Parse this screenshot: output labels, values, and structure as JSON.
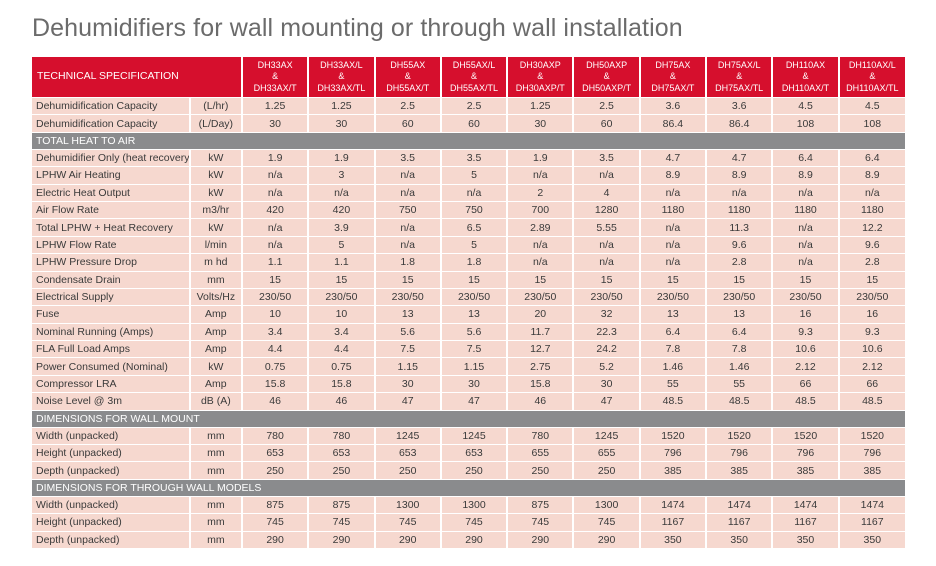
{
  "title": "Dehumidifiers for wall mounting or through wall installation",
  "header": {
    "spec_label": "TECHNICAL SPECIFICATION",
    "models": [
      [
        "DH33AX",
        "&",
        "DH33AX/T"
      ],
      [
        "DH33AX/L",
        "&",
        "DH33AX/TL"
      ],
      [
        "DH55AX",
        "&",
        "DH55AX/T"
      ],
      [
        "DH55AX/L",
        "&",
        "DH55AX/TL"
      ],
      [
        "DH30AXP",
        "&",
        "DH30AXP/T"
      ],
      [
        "DH50AXP",
        "&",
        "DH50AXP/T"
      ],
      [
        "DH75AX",
        "&",
        "DH75AX/T"
      ],
      [
        "DH75AX/L",
        "&",
        "DH75AX/TL"
      ],
      [
        "DH110AX",
        "&",
        "DH110AX/T"
      ],
      [
        "DH110AX/L",
        "&",
        "DH110AX/TL"
      ]
    ]
  },
  "sections": [
    {
      "title": null,
      "rows": [
        {
          "label": "Dehumidification Capacity",
          "unit": "(L/hr)",
          "values": [
            "1.25",
            "1.25",
            "2.5",
            "2.5",
            "1.25",
            "2.5",
            "3.6",
            "3.6",
            "4.5",
            "4.5"
          ]
        },
        {
          "label": "Dehumidification Capacity",
          "unit": "(L/Day)",
          "values": [
            "30",
            "30",
            "60",
            "60",
            "30",
            "60",
            "86.4",
            "86.4",
            "108",
            "108"
          ]
        }
      ]
    },
    {
      "title": "TOTAL HEAT TO AIR",
      "rows": [
        {
          "label": "Dehumidifier Only (heat recovery)",
          "unit": "kW",
          "values": [
            "1.9",
            "1.9",
            "3.5",
            "3.5",
            "1.9",
            "3.5",
            "4.7",
            "4.7",
            "6.4",
            "6.4"
          ]
        },
        {
          "label": "LPHW Air Heating",
          "unit": "kW",
          "values": [
            "n/a",
            "3",
            "n/a",
            "5",
            "n/a",
            "n/a",
            "8.9",
            "8.9",
            "8.9",
            "8.9"
          ]
        },
        {
          "label": "Electric Heat Output",
          "unit": "kW",
          "values": [
            "n/a",
            "n/a",
            "n/a",
            "n/a",
            "2",
            "4",
            "n/a",
            "n/a",
            "n/a",
            "n/a"
          ]
        },
        {
          "label": "Air Flow Rate",
          "unit": "m3/hr",
          "values": [
            "420",
            "420",
            "750",
            "750",
            "700",
            "1280",
            "1180",
            "1180",
            "1180",
            "1180"
          ]
        },
        {
          "label": "Total LPHW + Heat Recovery",
          "unit": "kW",
          "values": [
            "n/a",
            "3.9",
            "n/a",
            "6.5",
            "2.89",
            "5.55",
            "n/a",
            "11.3",
            "n/a",
            "12.2"
          ]
        },
        {
          "label": "LPHW Flow Rate",
          "unit": "l/min",
          "values": [
            "n/a",
            "5",
            "n/a",
            "5",
            "n/a",
            "n/a",
            "n/a",
            "9.6",
            "n/a",
            "9.6"
          ]
        },
        {
          "label": "LPHW Pressure Drop",
          "unit": "m hd",
          "values": [
            "1.1",
            "1.1",
            "1.8",
            "1.8",
            "n/a",
            "n/a",
            "n/a",
            "2.8",
            "n/a",
            "2.8"
          ]
        },
        {
          "label": "Condensate Drain",
          "unit": "mm",
          "values": [
            "15",
            "15",
            "15",
            "15",
            "15",
            "15",
            "15",
            "15",
            "15",
            "15"
          ]
        },
        {
          "label": "Electrical Supply",
          "unit": "Volts/Hz",
          "values": [
            "230/50",
            "230/50",
            "230/50",
            "230/50",
            "230/50",
            "230/50",
            "230/50",
            "230/50",
            "230/50",
            "230/50"
          ]
        },
        {
          "label": "Fuse",
          "unit": "Amp",
          "values": [
            "10",
            "10",
            "13",
            "13",
            "20",
            "32",
            "13",
            "13",
            "16",
            "16"
          ]
        },
        {
          "label": "Nominal Running (Amps)",
          "unit": "Amp",
          "values": [
            "3.4",
            "3.4",
            "5.6",
            "5.6",
            "11.7",
            "22.3",
            "6.4",
            "6.4",
            "9.3",
            "9.3"
          ]
        },
        {
          "label": "FLA Full Load Amps",
          "unit": "Amp",
          "values": [
            "4.4",
            "4.4",
            "7.5",
            "7.5",
            "12.7",
            "24.2",
            "7.8",
            "7.8",
            "10.6",
            "10.6"
          ]
        },
        {
          "label": "Power Consumed (Nominal)",
          "unit": "kW",
          "values": [
            "0.75",
            "0.75",
            "1.15",
            "1.15",
            "2.75",
            "5.2",
            "1.46",
            "1.46",
            "2.12",
            "2.12"
          ]
        },
        {
          "label": "Compressor LRA",
          "unit": "Amp",
          "values": [
            "15.8",
            "15.8",
            "30",
            "30",
            "15.8",
            "30",
            "55",
            "55",
            "66",
            "66"
          ]
        },
        {
          "label": "Noise Level @ 3m",
          "unit": "dB (A)",
          "values": [
            "46",
            "46",
            "47",
            "47",
            "46",
            "47",
            "48.5",
            "48.5",
            "48.5",
            "48.5"
          ]
        }
      ]
    },
    {
      "title": "DIMENSIONS FOR WALL MOUNT",
      "rows": [
        {
          "label": "Width (unpacked)",
          "unit": "mm",
          "values": [
            "780",
            "780",
            "1245",
            "1245",
            "780",
            "1245",
            "1520",
            "1520",
            "1520",
            "1520"
          ]
        },
        {
          "label": "Height (unpacked)",
          "unit": "mm",
          "values": [
            "653",
            "653",
            "653",
            "653",
            "655",
            "655",
            "796",
            "796",
            "796",
            "796"
          ]
        },
        {
          "label": "Depth (unpacked)",
          "unit": "mm",
          "values": [
            "250",
            "250",
            "250",
            "250",
            "250",
            "250",
            "385",
            "385",
            "385",
            "385"
          ]
        }
      ]
    },
    {
      "title": "DIMENSIONS FOR THROUGH WALL MODELS",
      "rows": [
        {
          "label": "Width (unpacked)",
          "unit": "mm",
          "values": [
            "875",
            "875",
            "1300",
            "1300",
            "875",
            "1300",
            "1474",
            "1474",
            "1474",
            "1474"
          ]
        },
        {
          "label": "Height (unpacked)",
          "unit": "mm",
          "values": [
            "745",
            "745",
            "745",
            "745",
            "745",
            "745",
            "1167",
            "1167",
            "1167",
            "1167"
          ]
        },
        {
          "label": "Depth (unpacked)",
          "unit": "mm",
          "values": [
            "290",
            "290",
            "290",
            "290",
            "290",
            "290",
            "350",
            "350",
            "350",
            "350"
          ]
        }
      ]
    }
  ]
}
